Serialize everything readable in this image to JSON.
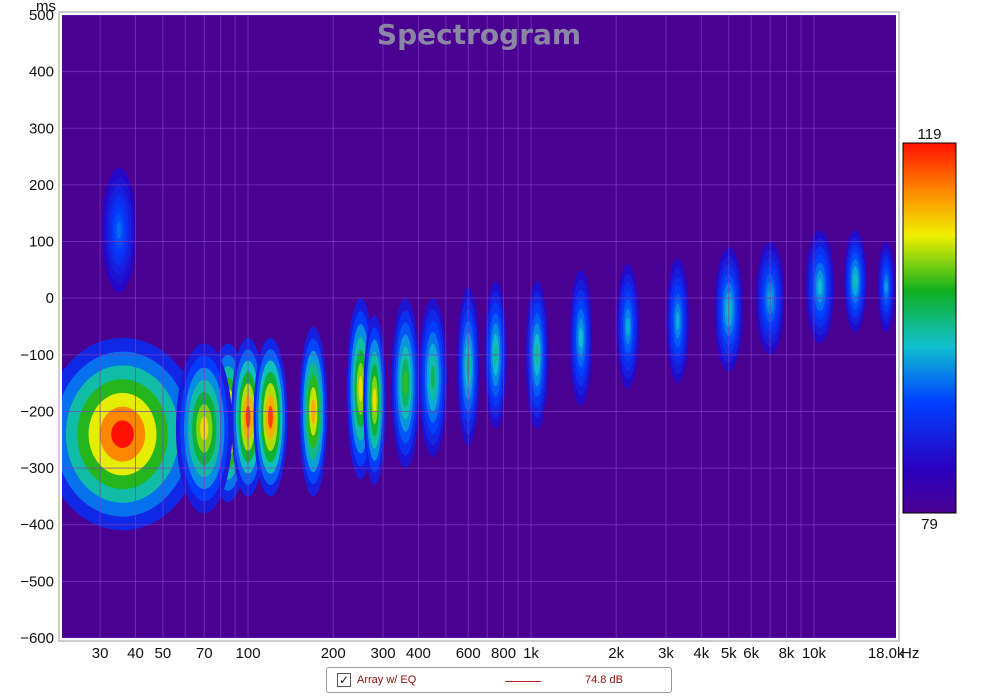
{
  "chart_data": {
    "type": "heatmap",
    "title": "Spectrogram",
    "x_unit": "Hz",
    "y_unit": "ms",
    "x_scale": "log",
    "xlim": [
      22,
      19500
    ],
    "ylim": [
      -600,
      500
    ],
    "grid": true,
    "x_ticks": [
      {
        "value": 30,
        "label": "30"
      },
      {
        "value": 40,
        "label": "40"
      },
      {
        "value": 50,
        "label": "50"
      },
      {
        "value": 70,
        "label": "70"
      },
      {
        "value": 100,
        "label": "100"
      },
      {
        "value": 200,
        "label": "200"
      },
      {
        "value": 300,
        "label": "300"
      },
      {
        "value": 400,
        "label": "400"
      },
      {
        "value": 600,
        "label": "600"
      },
      {
        "value": 800,
        "label": "800"
      },
      {
        "value": 1000,
        "label": "1k"
      },
      {
        "value": 2000,
        "label": "2k"
      },
      {
        "value": 3000,
        "label": "3k"
      },
      {
        "value": 4000,
        "label": "4k"
      },
      {
        "value": 5000,
        "label": "5k"
      },
      {
        "value": 6000,
        "label": "6k"
      },
      {
        "value": 8000,
        "label": "8k"
      },
      {
        "value": 10000,
        "label": "10k"
      },
      {
        "value": 18000,
        "label": "18.0k"
      }
    ],
    "y_ticks": [
      500,
      400,
      300,
      200,
      100,
      0,
      -100,
      -200,
      -300,
      -400,
      -500,
      -600
    ],
    "colorbar": {
      "min": 79,
      "max": 119,
      "min_label": "79",
      "max_label": "119"
    },
    "blobs": [
      {
        "freq": 36,
        "time": -240,
        "level": 119,
        "time_spread": 170,
        "freq_spread": 0.28
      },
      {
        "freq": 35,
        "time": 120,
        "level": 93,
        "time_spread": 110,
        "freq_spread": 0.06
      },
      {
        "freq": 85,
        "time": -220,
        "level": 119,
        "time_spread": 140,
        "freq_spread": 0.07
      },
      {
        "freq": 100,
        "time": -210,
        "level": 117,
        "time_spread": 140,
        "freq_spread": 0.06
      },
      {
        "freq": 120,
        "time": -210,
        "level": 117,
        "time_spread": 140,
        "freq_spread": 0.06
      },
      {
        "freq": 70,
        "time": -230,
        "level": 110,
        "time_spread": 150,
        "freq_spread": 0.1
      },
      {
        "freq": 170,
        "time": -200,
        "level": 112,
        "time_spread": 150,
        "freq_spread": 0.05
      },
      {
        "freq": 250,
        "time": -160,
        "level": 110,
        "time_spread": 160,
        "freq_spread": 0.05
      },
      {
        "freq": 280,
        "time": -180,
        "level": 110,
        "time_spread": 150,
        "freq_spread": 0.04
      },
      {
        "freq": 360,
        "time": -150,
        "level": 104,
        "time_spread": 150,
        "freq_spread": 0.05
      },
      {
        "freq": 450,
        "time": -140,
        "level": 101,
        "time_spread": 140,
        "freq_spread": 0.05
      },
      {
        "freq": 600,
        "time": -120,
        "level": 100,
        "time_spread": 140,
        "freq_spread": 0.04
      },
      {
        "freq": 750,
        "time": -100,
        "level": 99,
        "time_spread": 130,
        "freq_spread": 0.04
      },
      {
        "freq": 1050,
        "time": -100,
        "level": 99,
        "time_spread": 130,
        "freq_spread": 0.04
      },
      {
        "freq": 1500,
        "time": -70,
        "level": 97,
        "time_spread": 120,
        "freq_spread": 0.04
      },
      {
        "freq": 2200,
        "time": -50,
        "level": 96,
        "time_spread": 110,
        "freq_spread": 0.04
      },
      {
        "freq": 3300,
        "time": -40,
        "level": 96,
        "time_spread": 110,
        "freq_spread": 0.04
      },
      {
        "freq": 5000,
        "time": -20,
        "level": 98,
        "time_spread": 110,
        "freq_spread": 0.05
      },
      {
        "freq": 7000,
        "time": 0,
        "level": 96,
        "time_spread": 100,
        "freq_spread": 0.05
      },
      {
        "freq": 10500,
        "time": 20,
        "level": 97,
        "time_spread": 100,
        "freq_spread": 0.05
      },
      {
        "freq": 14000,
        "time": 30,
        "level": 98,
        "time_spread": 90,
        "freq_spread": 0.04
      },
      {
        "freq": 18000,
        "time": 20,
        "level": 95,
        "time_spread": 80,
        "freq_spread": 0.03
      }
    ]
  },
  "legend": {
    "checked": true,
    "name": "Array w/ EQ",
    "value": "74.8 dB",
    "line_color": "#c0201e"
  },
  "colors": {
    "background_floor": "#4a0090",
    "grid": "#7a3fc0",
    "frame": "#9b9b9b"
  }
}
